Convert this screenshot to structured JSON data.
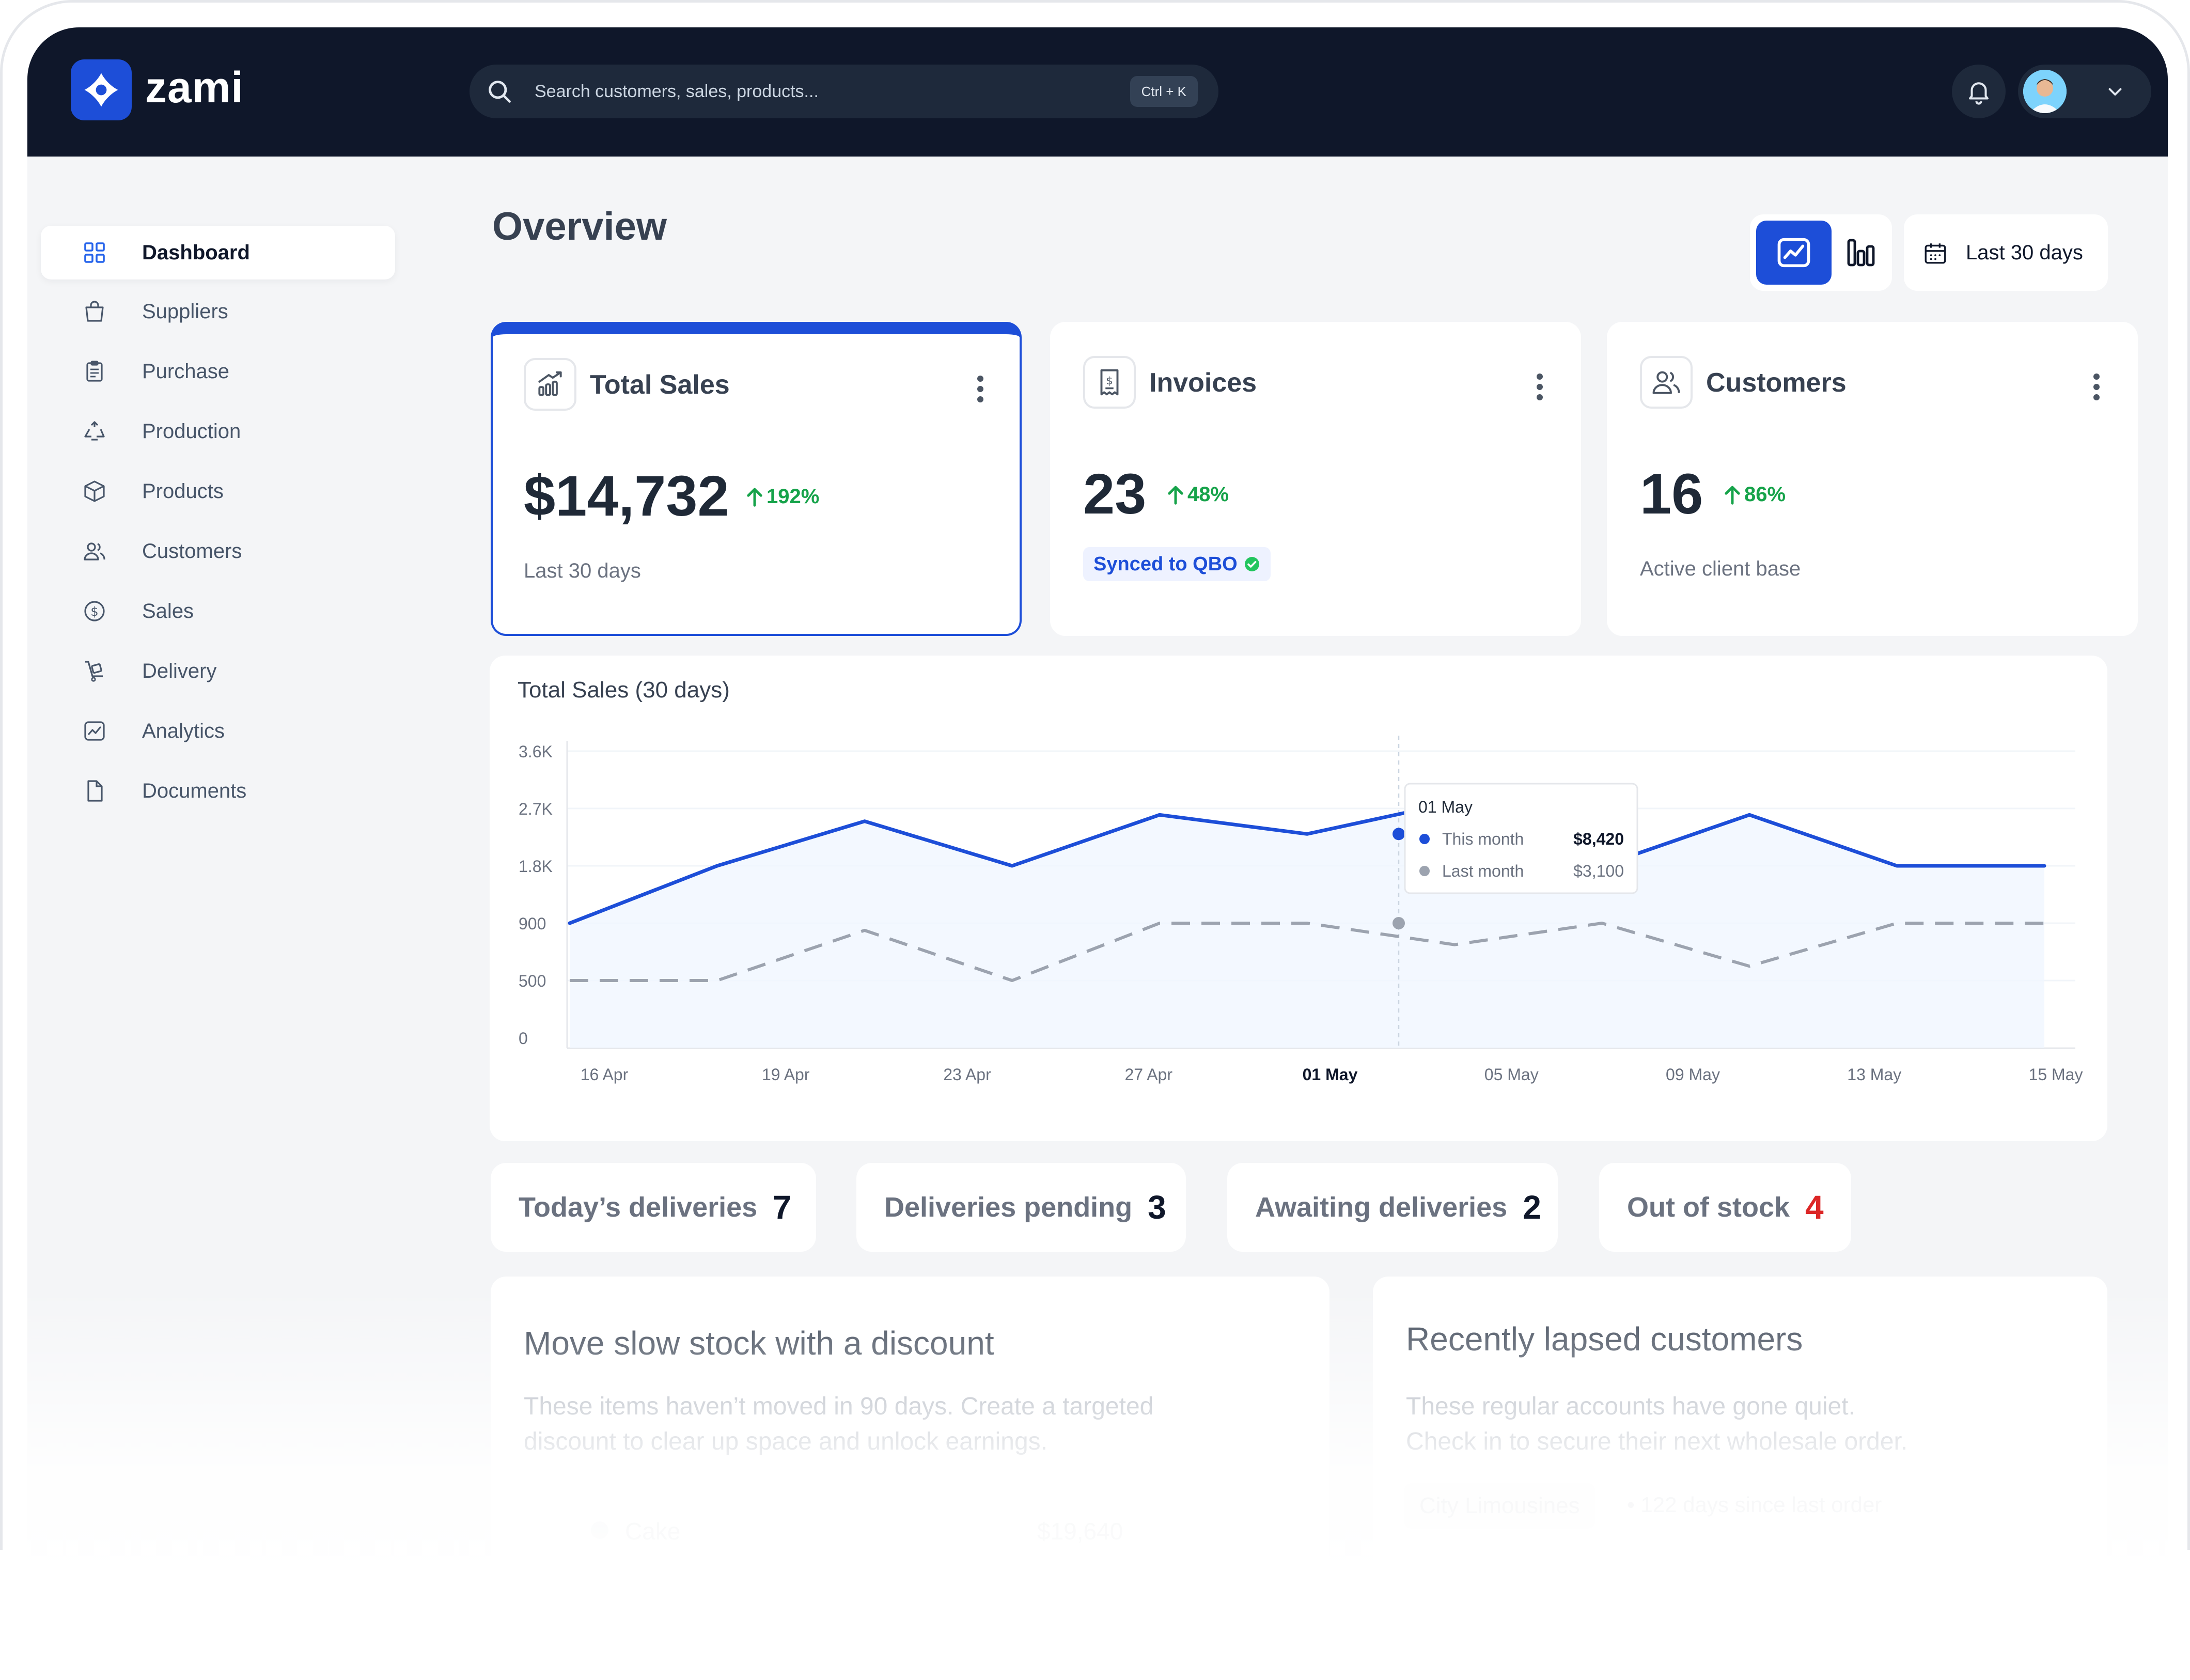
{
  "brand": {
    "name": "zami",
    "accent": "#1d4ed8"
  },
  "search": {
    "placeholder": "Search customers, sales, products...",
    "shortcut": "Ctrl + K"
  },
  "header": {
    "bell_icon": "bell-icon",
    "chevron_icon": "chevron-down-icon"
  },
  "sidebar": {
    "items": [
      {
        "label": "Dashboard",
        "icon": "grid-icon",
        "active": true
      },
      {
        "label": "Suppliers",
        "icon": "shopping-bag-icon"
      },
      {
        "label": "Purchase",
        "icon": "clipboard-icon"
      },
      {
        "label": "Production",
        "icon": "recycle-icon"
      },
      {
        "label": "Products",
        "icon": "box-icon"
      },
      {
        "label": "Customers",
        "icon": "users-icon"
      },
      {
        "label": "Sales",
        "icon": "dollar-icon"
      },
      {
        "label": "Delivery",
        "icon": "trolley-icon"
      },
      {
        "label": "Analytics",
        "icon": "chart-icon"
      },
      {
        "label": "Documents",
        "icon": "file-icon"
      }
    ]
  },
  "main": {
    "title": "Overview",
    "date_range": "Last 30 days",
    "cards": [
      {
        "title": "Total Sales",
        "value": "$14,732",
        "trend": "192%",
        "subtitle": "Last 30 days"
      },
      {
        "title": "Invoices",
        "value": "23",
        "trend": "48%",
        "badge": "Synced to QBO"
      },
      {
        "title": "Customers",
        "value": "16",
        "trend": "86%",
        "subtitle": "Active client base"
      }
    ],
    "stats": [
      {
        "label": "Today’s deliveries",
        "value": "7"
      },
      {
        "label": "Deliveries pending",
        "value": "3"
      },
      {
        "label": "Awaiting deliveries",
        "value": "2"
      },
      {
        "label": "Out of stock",
        "value": "4",
        "color": "#dc2626"
      }
    ],
    "panels": {
      "slow_stock": {
        "title": "Move slow stock with a discount",
        "description_line1": "These items haven’t moved in 90 days. Create a targeted",
        "description_line2": "discount to clear up space and unlock earnings.",
        "item_name": "Cake",
        "item_price": "$19,640"
      },
      "lapsed": {
        "title": "Recently lapsed customers",
        "description_line1": "These regular accounts have gone quiet.",
        "description_line2": "Check in to secure their next wholesale order.",
        "customer_name": "City Limousines",
        "customer_note": "• 122 days since last order"
      }
    }
  },
  "chart_data": {
    "type": "line",
    "title": "Total Sales (30 days)",
    "y_tick_labels": [
      "0",
      "500",
      "900",
      "1.8K",
      "2.7K",
      "3.6K"
    ],
    "x_tick_labels": [
      "16 Apr",
      "19 Apr",
      "23 Apr",
      "27 Apr",
      "01 May",
      "05 May",
      "09 May",
      "13 May",
      "15 May"
    ],
    "highlight_label": "01 May",
    "grid": true,
    "series": [
      {
        "name": "This month",
        "color": "#1d4ed8",
        "style": "solid",
        "values": [
          900,
          1800,
          2500,
          1800,
          2600,
          2300,
          2800,
          1800,
          2600,
          1800,
          1800
        ]
      },
      {
        "name": "Last month",
        "color": "#9ca3af",
        "style": "dashed",
        "values": [
          500,
          500,
          850,
          500,
          900,
          900,
          750,
          900,
          600,
          900,
          900
        ]
      }
    ],
    "tooltip": {
      "date": "01 May",
      "rows": [
        {
          "name": "This month",
          "value": "$8,420",
          "color": "#1d4ed8"
        },
        {
          "name": "Last month",
          "value": "$3,100",
          "color": "#9ca3af"
        }
      ]
    }
  }
}
